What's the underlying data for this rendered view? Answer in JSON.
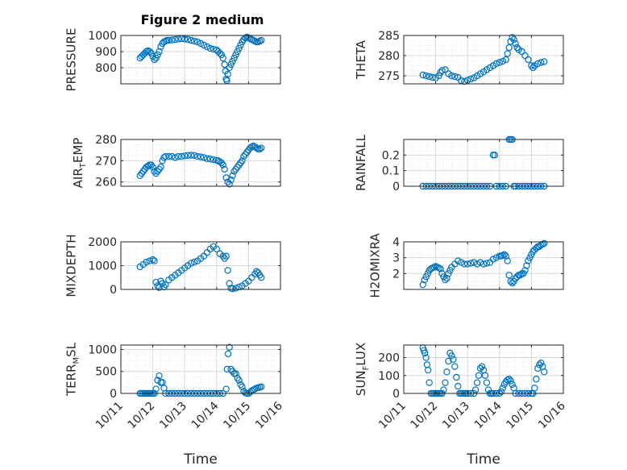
{
  "figure_title": "Figure 2 medium",
  "colors": {
    "marker": "#0072BD",
    "axis": "#262626",
    "grid": "#d9d9d9",
    "minor_grid": "#ebebeb"
  },
  "chart_data": [
    {
      "type": "scatter",
      "title": "Figure 2 medium",
      "xlabel": "",
      "ylabel": "PRESSURE",
      "xlim": [
        "10/11",
        "10/16"
      ],
      "x_ticks": [
        "10/11",
        "10/12",
        "10/13",
        "10/14",
        "10/15",
        "10/16"
      ],
      "ylim": [
        700,
        1000
      ],
      "y_ticks": [
        "800",
        "900",
        "1000"
      ],
      "y_tick_values": [
        800,
        900,
        1000
      ],
      "grid": true,
      "x": [
        11.6,
        11.65,
        11.7,
        11.75,
        11.8,
        11.85,
        11.9,
        11.95,
        12.0,
        12.05,
        12.1,
        12.15,
        12.2,
        12.25,
        12.3,
        12.35,
        12.4,
        12.45,
        12.5,
        12.6,
        12.7,
        12.8,
        12.9,
        13.0,
        13.1,
        13.2,
        13.3,
        13.4,
        13.5,
        13.6,
        13.7,
        13.8,
        13.9,
        14.0,
        14.05,
        14.1,
        14.15,
        14.2,
        14.25,
        14.28,
        14.3,
        14.32,
        14.35,
        14.4,
        14.45,
        14.5,
        14.55,
        14.6,
        14.65,
        14.7,
        14.75,
        14.8,
        14.85,
        14.9,
        14.95,
        15.0,
        15.05,
        15.1,
        15.15,
        15.2,
        15.25,
        15.3,
        15.35,
        15.4
      ],
      "y": [
        860,
        870,
        880,
        890,
        900,
        905,
        900,
        890,
        870,
        850,
        860,
        880,
        900,
        930,
        950,
        960,
        965,
        970,
        970,
        972,
        975,
        978,
        980,
        978,
        975,
        970,
        965,
        960,
        950,
        940,
        930,
        920,
        915,
        910,
        900,
        890,
        880,
        860,
        820,
        780,
        730,
        720,
        760,
        800,
        820,
        840,
        860,
        880,
        900,
        920,
        940,
        960,
        975,
        985,
        990,
        985,
        980,
        975,
        970,
        965,
        960,
        960,
        965,
        970
      ]
    },
    {
      "type": "scatter",
      "xlabel": "",
      "ylabel": "THETA",
      "xlim": [
        "10/11",
        "10/16"
      ],
      "x_ticks": [
        "10/11",
        "10/12",
        "10/13",
        "10/14",
        "10/15",
        "10/16"
      ],
      "ylim": [
        273,
        285
      ],
      "y_ticks": [
        "275",
        "280",
        "285"
      ],
      "y_tick_values": [
        275,
        280,
        285
      ],
      "grid": true,
      "x": [
        11.6,
        11.7,
        11.8,
        11.9,
        12.0,
        12.1,
        12.15,
        12.2,
        12.3,
        12.4,
        12.5,
        12.6,
        12.7,
        12.8,
        12.9,
        13.0,
        13.1,
        13.2,
        13.3,
        13.4,
        13.5,
        13.6,
        13.7,
        13.8,
        13.9,
        14.0,
        14.1,
        14.2,
        14.25,
        14.3,
        14.35,
        14.4,
        14.45,
        14.5,
        14.55,
        14.6,
        14.7,
        14.8,
        14.9,
        15.0,
        15.05,
        15.1,
        15.2,
        15.3,
        15.4
      ],
      "y": [
        275.2,
        275.0,
        274.8,
        274.6,
        274.5,
        275.0,
        275.8,
        276.3,
        276.5,
        275.5,
        275.0,
        274.8,
        274.6,
        273.8,
        273.6,
        273.9,
        274.2,
        274.5,
        275.0,
        275.5,
        276.0,
        276.5,
        277.0,
        277.5,
        278.0,
        278.3,
        278.6,
        279.0,
        280.5,
        282.0,
        283.5,
        284.5,
        284.0,
        283.0,
        282.0,
        281.5,
        281.0,
        280.0,
        279.0,
        277.5,
        277.0,
        277.5,
        278.0,
        278.3,
        278.5
      ]
    },
    {
      "type": "scatter",
      "xlabel": "",
      "ylabel": "AIR_TEMP",
      "xlim": [
        "10/11",
        "10/16"
      ],
      "x_ticks": [
        "10/11",
        "10/12",
        "10/13",
        "10/14",
        "10/15",
        "10/16"
      ],
      "ylim": [
        258,
        280
      ],
      "y_ticks": [
        "260",
        "270",
        "280"
      ],
      "y_tick_values": [
        260,
        270,
        280
      ],
      "grid": true,
      "x": [
        11.6,
        11.65,
        11.7,
        11.75,
        11.8,
        11.85,
        11.9,
        11.95,
        12.0,
        12.05,
        12.1,
        12.15,
        12.2,
        12.25,
        12.3,
        12.35,
        12.4,
        12.5,
        12.6,
        12.7,
        12.8,
        12.9,
        13.0,
        13.1,
        13.2,
        13.3,
        13.4,
        13.5,
        13.6,
        13.7,
        13.8,
        13.9,
        14.0,
        14.05,
        14.1,
        14.15,
        14.2,
        14.25,
        14.3,
        14.35,
        14.4,
        14.45,
        14.5,
        14.55,
        14.6,
        14.65,
        14.7,
        14.75,
        14.8,
        14.85,
        14.9,
        14.95,
        15.0,
        15.05,
        15.1,
        15.15,
        15.2,
        15.25,
        15.3,
        15.35,
        15.4
      ],
      "y": [
        263,
        264,
        265,
        266,
        267,
        267.5,
        268,
        268,
        267,
        265,
        264,
        265,
        266,
        267,
        270,
        271.5,
        272,
        272,
        272,
        271.5,
        272,
        272,
        272.3,
        272.5,
        272.6,
        272.5,
        272,
        271.8,
        271.5,
        271,
        270.8,
        270.5,
        270.2,
        270,
        269.5,
        269,
        268,
        266,
        262,
        260,
        259,
        261,
        263,
        265,
        266,
        267,
        268,
        269,
        270,
        272,
        273,
        274,
        275,
        276,
        276.5,
        277,
        276.5,
        276,
        275.5,
        275.5,
        276
      ]
    },
    {
      "type": "scatter",
      "xlabel": "",
      "ylabel": "RAINFALL",
      "xlim": [
        "10/11",
        "10/16"
      ],
      "x_ticks": [
        "10/11",
        "10/12",
        "10/13",
        "10/14",
        "10/15",
        "10/16"
      ],
      "ylim": [
        0,
        0.3
      ],
      "y_ticks": [
        "0",
        "0.1",
        "0.2"
      ],
      "y_tick_values": [
        0,
        0.1,
        0.2
      ],
      "grid": true,
      "x": [
        11.6,
        11.7,
        11.8,
        11.9,
        12.0,
        12.1,
        12.2,
        12.3,
        12.4,
        12.5,
        12.6,
        12.7,
        12.8,
        12.9,
        13.0,
        13.1,
        13.2,
        13.3,
        13.4,
        13.5,
        13.6,
        13.7,
        13.8,
        13.85,
        13.9,
        14.0,
        14.1,
        14.2,
        14.3,
        14.35,
        14.4,
        14.45,
        14.5,
        14.6,
        14.7,
        14.8,
        14.9,
        15.0,
        15.1,
        15.2,
        15.3,
        15.4
      ],
      "y": [
        0,
        0,
        0,
        0,
        0,
        0,
        0,
        0,
        0,
        0,
        0,
        0,
        0,
        0,
        0,
        0,
        0,
        0,
        0,
        0,
        0,
        0,
        0.2,
        0.2,
        0,
        0,
        0,
        0,
        0.3,
        0.3,
        0.3,
        0,
        0,
        0,
        0,
        0,
        0,
        0,
        0,
        0,
        0,
        0
      ]
    },
    {
      "type": "scatter",
      "xlabel": "",
      "ylabel": "MIXDEPTH",
      "xlim": [
        "10/11",
        "10/16"
      ],
      "x_ticks": [
        "10/11",
        "10/12",
        "10/13",
        "10/14",
        "10/15",
        "10/16"
      ],
      "ylim": [
        0,
        2000
      ],
      "y_ticks": [
        "0",
        "1000",
        "2000"
      ],
      "y_tick_values": [
        0,
        1000,
        2000
      ],
      "grid": true,
      "x": [
        11.6,
        11.7,
        11.8,
        11.9,
        12.0,
        12.05,
        12.1,
        12.15,
        12.2,
        12.25,
        12.3,
        12.35,
        12.4,
        12.5,
        12.6,
        12.7,
        12.8,
        12.9,
        13.0,
        13.1,
        13.2,
        13.3,
        13.4,
        13.5,
        13.6,
        13.7,
        13.8,
        13.9,
        14.0,
        14.1,
        14.2,
        14.25,
        14.3,
        14.35,
        14.4,
        14.45,
        14.5,
        14.6,
        14.7,
        14.8,
        14.9,
        15.0,
        15.1,
        15.2,
        15.25,
        15.3,
        15.35,
        15.4
      ],
      "y": [
        950,
        1050,
        1150,
        1200,
        1250,
        1200,
        300,
        150,
        80,
        350,
        250,
        100,
        200,
        400,
        500,
        600,
        700,
        800,
        900,
        1000,
        1100,
        1150,
        1200,
        1300,
        1400,
        1550,
        1700,
        1800,
        1700,
        1500,
        1400,
        1300,
        1400,
        800,
        250,
        50,
        30,
        50,
        100,
        150,
        250,
        350,
        500,
        650,
        750,
        700,
        600,
        500
      ]
    },
    {
      "type": "scatter",
      "xlabel": "",
      "ylabel": "H2OMIXRA",
      "xlim": [
        "10/11",
        "10/16"
      ],
      "x_ticks": [
        "10/11",
        "10/12",
        "10/13",
        "10/14",
        "10/15",
        "10/16"
      ],
      "ylim": [
        1,
        4
      ],
      "y_ticks": [
        "2",
        "3",
        "4"
      ],
      "y_tick_values": [
        2,
        3,
        4
      ],
      "grid": true,
      "x": [
        11.6,
        11.65,
        11.7,
        11.75,
        11.8,
        11.85,
        11.9,
        11.95,
        12.0,
        12.05,
        12.1,
        12.15,
        12.2,
        12.25,
        12.3,
        12.35,
        12.4,
        12.45,
        12.5,
        12.6,
        12.7,
        12.8,
        12.9,
        13.0,
        13.1,
        13.2,
        13.3,
        13.4,
        13.5,
        13.6,
        13.7,
        13.8,
        13.9,
        14.0,
        14.05,
        14.1,
        14.15,
        14.2,
        14.25,
        14.3,
        14.35,
        14.4,
        14.45,
        14.5,
        14.55,
        14.6,
        14.65,
        14.7,
        14.75,
        14.8,
        14.85,
        14.9,
        14.95,
        15.0,
        15.05,
        15.1,
        15.15,
        15.2,
        15.25,
        15.3,
        15.35,
        15.4
      ],
      "y": [
        1.3,
        1.6,
        1.8,
        2.0,
        2.2,
        2.3,
        2.35,
        2.4,
        2.45,
        2.4,
        2.35,
        2.3,
        2.0,
        1.8,
        1.6,
        1.7,
        2.0,
        2.2,
        2.4,
        2.6,
        2.8,
        2.7,
        2.6,
        2.6,
        2.65,
        2.7,
        2.6,
        2.7,
        2.6,
        2.65,
        2.7,
        2.9,
        3.0,
        3.1,
        3.1,
        3.15,
        3.2,
        3.1,
        2.8,
        1.9,
        1.5,
        1.4,
        1.5,
        1.7,
        1.8,
        1.9,
        1.9,
        2.0,
        2.0,
        2.2,
        2.5,
        2.8,
        3.0,
        3.2,
        3.4,
        3.5,
        3.6,
        3.7,
        3.7,
        3.8,
        3.85,
        3.9
      ]
    },
    {
      "type": "scatter",
      "xlabel": "Time",
      "ylabel": "TERR_MSL",
      "xlim": [
        "10/11",
        "10/16"
      ],
      "x_ticks": [
        "10/11",
        "10/12",
        "10/13",
        "10/14",
        "10/15",
        "10/16"
      ],
      "ylim": [
        0,
        1100
      ],
      "y_ticks": [
        "0",
        "500",
        "1000"
      ],
      "y_tick_values": [
        0,
        500,
        1000
      ],
      "grid": true,
      "x": [
        11.6,
        11.65,
        11.7,
        11.75,
        11.8,
        11.85,
        11.9,
        11.95,
        12.0,
        12.05,
        12.1,
        12.15,
        12.2,
        12.25,
        12.3,
        12.35,
        12.4,
        12.5,
        12.6,
        12.7,
        12.8,
        12.9,
        13.0,
        13.1,
        13.2,
        13.3,
        13.4,
        13.5,
        13.6,
        13.7,
        13.8,
        13.9,
        14.0,
        14.1,
        14.2,
        14.3,
        14.33,
        14.36,
        14.4,
        14.45,
        14.5,
        14.55,
        14.6,
        14.65,
        14.7,
        14.75,
        14.8,
        14.85,
        14.9,
        14.95,
        15.0,
        15.05,
        15.1,
        15.15,
        15.2,
        15.25,
        15.3,
        15.35,
        15.4
      ],
      "y": [
        0,
        0,
        0,
        0,
        0,
        0,
        0,
        0,
        0,
        0,
        100,
        300,
        400,
        250,
        250,
        120,
        0,
        0,
        0,
        0,
        0,
        0,
        0,
        0,
        0,
        0,
        0,
        0,
        0,
        0,
        0,
        0,
        0,
        0,
        0,
        100,
        550,
        900,
        1050,
        550,
        500,
        450,
        450,
        350,
        300,
        200,
        150,
        50,
        10,
        0,
        0,
        30,
        60,
        80,
        100,
        120,
        130,
        140,
        150
      ]
    },
    {
      "type": "scatter",
      "xlabel": "Time",
      "ylabel": "SUN_FLUX",
      "xlim": [
        "10/11",
        "10/16"
      ],
      "x_ticks": [
        "10/11",
        "10/12",
        "10/13",
        "10/14",
        "10/15",
        "10/16"
      ],
      "ylim": [
        0,
        270
      ],
      "y_ticks": [
        "0",
        "100",
        "200"
      ],
      "y_tick_values": [
        0,
        100,
        200
      ],
      "grid": true,
      "x": [
        11.6,
        11.63,
        11.66,
        11.7,
        11.73,
        11.76,
        11.8,
        11.85,
        11.9,
        11.95,
        12.0,
        12.05,
        12.1,
        12.15,
        12.2,
        12.25,
        12.3,
        12.35,
        12.4,
        12.45,
        12.5,
        12.55,
        12.6,
        12.65,
        12.7,
        12.75,
        12.8,
        12.85,
        12.9,
        12.95,
        13.0,
        13.1,
        13.2,
        13.25,
        13.3,
        13.35,
        13.4,
        13.45,
        13.5,
        13.55,
        13.6,
        13.65,
        13.7,
        13.75,
        13.8,
        13.9,
        14.0,
        14.05,
        14.1,
        14.15,
        14.2,
        14.25,
        14.3,
        14.35,
        14.4,
        14.45,
        14.5,
        14.6,
        14.7,
        14.8,
        14.9,
        15.0,
        15.05,
        15.1,
        15.15,
        15.2,
        15.25,
        15.3,
        15.35,
        15.4
      ],
      "y": [
        255,
        240,
        225,
        200,
        160,
        130,
        60,
        0,
        0,
        0,
        0,
        0,
        0,
        0,
        0,
        20,
        60,
        120,
        180,
        225,
        210,
        190,
        150,
        90,
        40,
        0,
        0,
        0,
        0,
        0,
        0,
        0,
        0,
        20,
        60,
        100,
        140,
        150,
        130,
        100,
        60,
        20,
        0,
        0,
        0,
        0,
        0,
        10,
        30,
        50,
        65,
        75,
        80,
        70,
        50,
        30,
        0,
        0,
        0,
        0,
        0,
        0,
        0,
        30,
        80,
        140,
        160,
        170,
        150,
        120
      ]
    }
  ]
}
